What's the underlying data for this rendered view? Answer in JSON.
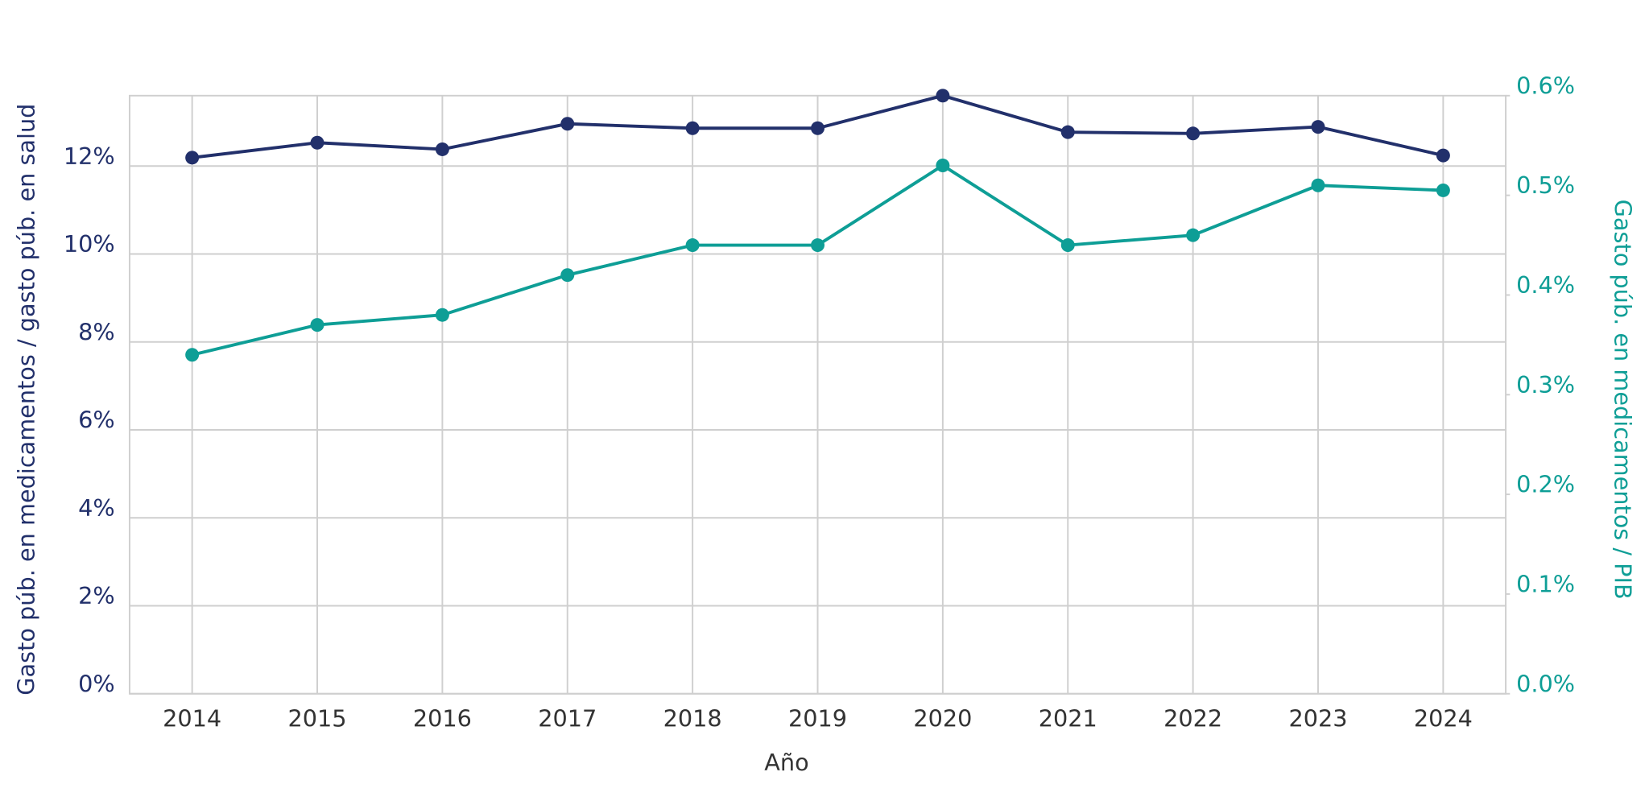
{
  "chart_data": {
    "type": "line",
    "x_label": "Año",
    "y_label": "Gasto púb. en medicamentos / gasto púb. en salud",
    "y2_label": "Gasto púb. en medicamentos / PIB",
    "categories": [
      "2014",
      "2015",
      "2016",
      "2017",
      "2018",
      "2019",
      "2020",
      "2021",
      "2022",
      "2023",
      "2024"
    ],
    "series": [
      {
        "name": "Gasto púb. en medicamentos / gasto púb. en salud",
        "color": "#22306b",
        "values": [
          12.19,
          12.53,
          12.38,
          12.96,
          12.86,
          12.86,
          13.6,
          12.77,
          12.74,
          12.89,
          12.24
        ]
      },
      {
        "name": "Gasto púb. en medicamentos / PIB",
        "color": "#0e9e96",
        "axis": "y2",
        "values": [
          0.34,
          0.37,
          0.38,
          0.42,
          0.45,
          0.45,
          0.53,
          0.45,
          0.46,
          0.51,
          0.505
        ]
      }
    ],
    "ylim": [
      0,
      13.6
    ],
    "yticks": [
      {
        "value": 0,
        "label": "0%"
      },
      {
        "value": 2,
        "label": "2%"
      },
      {
        "value": 4,
        "label": "4%"
      },
      {
        "value": 6,
        "label": "6%"
      },
      {
        "value": 8,
        "label": "8%"
      },
      {
        "value": 10,
        "label": "10%"
      },
      {
        "value": 12,
        "label": "12%"
      }
    ],
    "y2lim": [
      0,
      0.6
    ],
    "y2ticks": [
      {
        "value": 0,
        "label": "0.0%"
      },
      {
        "value": 0.1,
        "label": "0.1%"
      },
      {
        "value": 0.2,
        "label": "0.2%"
      },
      {
        "value": 0.3,
        "label": "0.3%"
      },
      {
        "value": 0.4,
        "label": "0.4%"
      },
      {
        "value": 0.5,
        "label": "0.5%"
      },
      {
        "value": 0.6,
        "label": "0.6%"
      }
    ],
    "grid": true
  }
}
